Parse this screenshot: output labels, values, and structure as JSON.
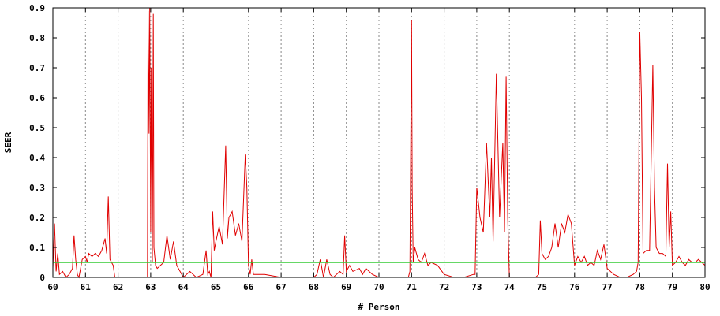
{
  "chart_data": {
    "type": "line",
    "title": "",
    "xlabel": "# Person",
    "ylabel": "SEER",
    "xlim": [
      60,
      80
    ],
    "ylim": [
      0,
      0.9
    ],
    "x_ticks": [
      "60",
      "61",
      "62",
      "63",
      "64",
      "65",
      "66",
      "67",
      "68",
      "69",
      "70",
      "71",
      "72",
      "73",
      "74",
      "75",
      "76",
      "77",
      "78",
      "79",
      "80"
    ],
    "y_ticks": [
      "0",
      "0.1",
      "0.2",
      "0.3",
      "0.4",
      "0.5",
      "0.6",
      "0.7",
      "0.8",
      "0.9"
    ],
    "grid": "vertical dotted lines at each integer x",
    "series": [
      {
        "color": "#e00000",
        "x": [
          60.0,
          60.05,
          60.1,
          60.15,
          60.2,
          60.3,
          60.4,
          60.5,
          60.6,
          60.65,
          60.7,
          60.75,
          60.8,
          60.9,
          61.0,
          61.05,
          61.1,
          61.2,
          61.3,
          61.4,
          61.5,
          61.6,
          61.65,
          61.7,
          61.75,
          61.8,
          61.85,
          61.9,
          62.0,
          62.5,
          62.9,
          62.92,
          62.95,
          62.97,
          63.0,
          63.02,
          63.05,
          63.08,
          63.1,
          63.15,
          63.2,
          63.3,
          63.4,
          63.5,
          63.6,
          63.7,
          63.8,
          63.9,
          64.0,
          64.2,
          64.4,
          64.6,
          64.7,
          64.75,
          64.8,
          64.85,
          64.9,
          64.95,
          65.0,
          65.1,
          65.2,
          65.3,
          65.35,
          65.4,
          65.5,
          65.6,
          65.7,
          65.8,
          65.9,
          65.95,
          66.0,
          66.05,
          66.1,
          66.15,
          66.2,
          66.5,
          67.0,
          67.5,
          68.0,
          68.1,
          68.2,
          68.3,
          68.4,
          68.5,
          68.6,
          68.8,
          68.9,
          68.95,
          69.0,
          69.1,
          69.2,
          69.4,
          69.5,
          69.6,
          69.8,
          70.0,
          70.5,
          70.9,
          70.95,
          71.0,
          71.02,
          71.05,
          71.1,
          71.2,
          71.3,
          71.4,
          71.5,
          71.6,
          71.8,
          72.0,
          72.3,
          72.6,
          72.9,
          72.95,
          73.0,
          73.1,
          73.2,
          73.3,
          73.4,
          73.45,
          73.5,
          73.6,
          73.7,
          73.75,
          73.8,
          73.85,
          73.9,
          73.95,
          74.0,
          74.2,
          74.4,
          74.8,
          74.9,
          74.95,
          75.0,
          75.1,
          75.2,
          75.3,
          75.4,
          75.5,
          75.6,
          75.7,
          75.8,
          75.9,
          76.0,
          76.1,
          76.2,
          76.3,
          76.4,
          76.5,
          76.6,
          76.7,
          76.8,
          76.9,
          77.0,
          77.2,
          77.4,
          77.6,
          77.8,
          77.9,
          77.95,
          78.0,
          78.05,
          78.1,
          78.2,
          78.3,
          78.4,
          78.45,
          78.5,
          78.6,
          78.7,
          78.8,
          78.85,
          78.9,
          78.95,
          79.0,
          79.1,
          79.2,
          79.3,
          79.4,
          79.5,
          79.6,
          79.7,
          79.8,
          79.9,
          80.0
        ],
        "y": [
          0.03,
          0.18,
          0.02,
          0.08,
          0.01,
          0.02,
          0.0,
          0.01,
          0.03,
          0.14,
          0.06,
          0.01,
          0.0,
          0.06,
          0.07,
          0.05,
          0.08,
          0.07,
          0.08,
          0.07,
          0.09,
          0.13,
          0.08,
          0.27,
          0.06,
          0.05,
          0.04,
          0.0,
          0.0,
          0.0,
          0.0,
          0.89,
          0.48,
          0.9,
          0.15,
          0.7,
          0.05,
          0.88,
          0.1,
          0.04,
          0.03,
          0.04,
          0.05,
          0.14,
          0.06,
          0.12,
          0.04,
          0.02,
          0.0,
          0.02,
          0.0,
          0.01,
          0.09,
          0.01,
          0.02,
          0.0,
          0.22,
          0.09,
          0.12,
          0.17,
          0.11,
          0.44,
          0.13,
          0.2,
          0.22,
          0.14,
          0.18,
          0.12,
          0.41,
          0.3,
          0.04,
          0.01,
          0.06,
          0.01,
          0.01,
          0.01,
          0.0,
          0.0,
          0.0,
          0.01,
          0.06,
          0.0,
          0.06,
          0.01,
          0.0,
          0.02,
          0.01,
          0.14,
          0.02,
          0.04,
          0.02,
          0.03,
          0.01,
          0.03,
          0.01,
          0.0,
          0.0,
          0.0,
          0.02,
          0.86,
          0.3,
          0.05,
          0.1,
          0.06,
          0.05,
          0.08,
          0.04,
          0.05,
          0.04,
          0.01,
          0.0,
          0.0,
          0.01,
          0.01,
          0.3,
          0.2,
          0.15,
          0.45,
          0.2,
          0.4,
          0.12,
          0.68,
          0.2,
          0.33,
          0.45,
          0.15,
          0.67,
          0.2,
          0.0,
          0.0,
          0.0,
          0.0,
          0.01,
          0.19,
          0.08,
          0.06,
          0.07,
          0.1,
          0.18,
          0.1,
          0.18,
          0.15,
          0.21,
          0.18,
          0.04,
          0.07,
          0.05,
          0.07,
          0.04,
          0.05,
          0.04,
          0.09,
          0.06,
          0.11,
          0.03,
          0.01,
          0.0,
          0.0,
          0.01,
          0.02,
          0.05,
          0.82,
          0.6,
          0.08,
          0.09,
          0.09,
          0.71,
          0.3,
          0.1,
          0.08,
          0.08,
          0.07,
          0.38,
          0.1,
          0.22,
          0.04,
          0.05,
          0.07,
          0.05,
          0.04,
          0.06,
          0.05,
          0.05,
          0.06,
          0.05,
          0.04
        ]
      },
      {
        "color": "#33cc33",
        "x": [
          60,
          80
        ],
        "y": [
          0.05,
          0.05
        ]
      }
    ]
  }
}
